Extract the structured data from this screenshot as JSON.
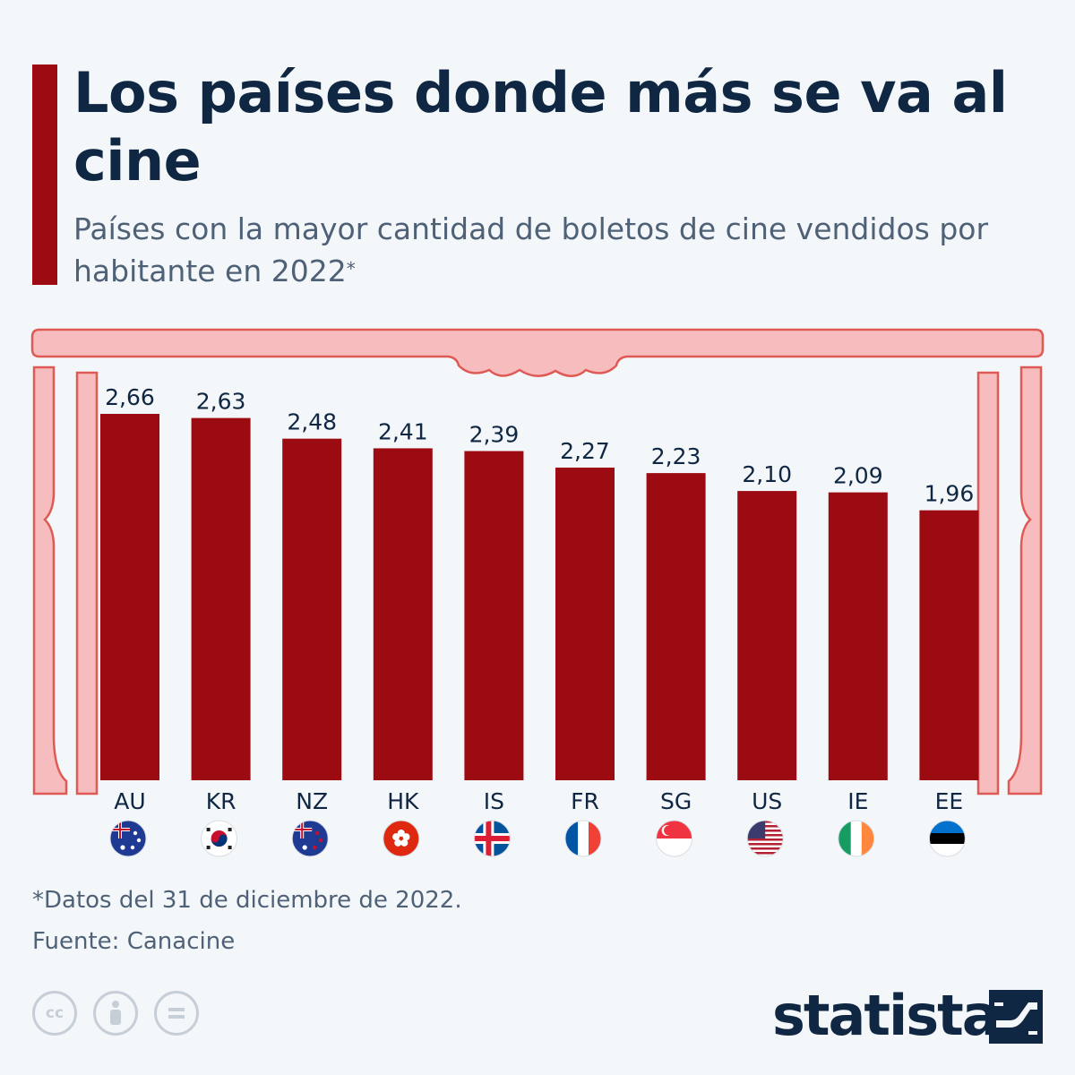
{
  "header": {
    "title": "Los países donde más se va al cine",
    "subtitle": "Países con la mayor cantidad de boletos de cine vendidos por habitante en 2022",
    "subtitle_mark": "*"
  },
  "chart_data": {
    "type": "bar",
    "categories": [
      "AU",
      "KR",
      "NZ",
      "HK",
      "IS",
      "FR",
      "SG",
      "US",
      "IE",
      "EE"
    ],
    "values": [
      2.66,
      2.63,
      2.48,
      2.41,
      2.39,
      2.27,
      2.23,
      2.1,
      2.09,
      1.96
    ],
    "value_labels": [
      "2,66",
      "2,63",
      "2,48",
      "2,41",
      "2,39",
      "2,27",
      "2,23",
      "2,10",
      "2,09",
      "1,96"
    ],
    "flags": [
      "australia-flag",
      "south-korea-flag",
      "new-zealand-flag",
      "hong-kong-flag",
      "iceland-flag",
      "france-flag",
      "singapore-flag",
      "usa-flag",
      "ireland-flag",
      "estonia-flag"
    ],
    "ylim": [
      0,
      2.66
    ],
    "bar_color": "#9c0a12",
    "curtain_color": "#f6bcbe",
    "curtain_line_color": "#e05a55"
  },
  "footer": {
    "footnote": "*Datos del 31 de diciembre de 2022.",
    "source": "Fuente: Canacine",
    "cc_label": "cc",
    "brand": "statista"
  }
}
